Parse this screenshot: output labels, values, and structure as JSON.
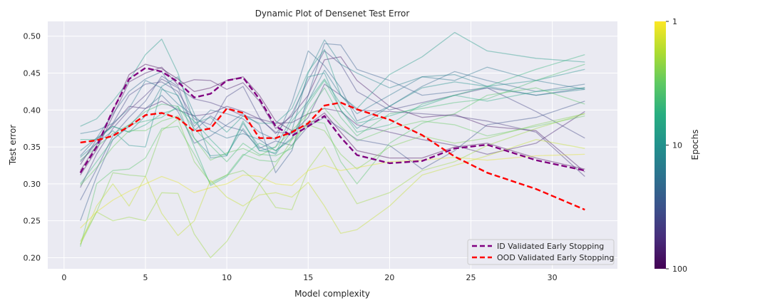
{
  "chart_data": {
    "type": "line",
    "title": "Dynamic Plot of Densenet Test Error",
    "xlabel": "Model complexity",
    "ylabel": "Test error",
    "xlim": [
      -1,
      34
    ],
    "ylim": [
      0.185,
      0.52
    ],
    "xticks": [
      0,
      5,
      10,
      15,
      20,
      25,
      30
    ],
    "yticks": [
      0.2,
      0.25,
      0.3,
      0.35,
      0.4,
      0.45,
      0.5
    ],
    "xtick_labels": [
      "0",
      "5",
      "10",
      "15",
      "20",
      "25",
      "30"
    ],
    "ytick_labels": [
      "0.20",
      "0.25",
      "0.30",
      "0.35",
      "0.40",
      "0.45",
      "0.50"
    ],
    "grid": true,
    "background": "#eaeaf2",
    "legend_position": "lower-right",
    "colorbar": {
      "label": "Epochs",
      "scale": "log",
      "colormap": "viridis",
      "ticks": [
        "1",
        "10",
        "100"
      ],
      "min": 1,
      "max": 100
    },
    "series": [
      {
        "name": "ID Validated Early Stopping",
        "color": "#800080",
        "style": "dashed",
        "x": [
          1,
          2,
          3,
          4,
          5,
          6,
          7,
          8,
          9,
          10,
          11,
          12,
          13,
          14,
          15,
          16,
          17,
          18,
          20,
          22,
          24,
          26,
          29,
          32
        ],
        "values": [
          0.315,
          0.35,
          0.4,
          0.442,
          0.457,
          0.452,
          0.438,
          0.417,
          0.422,
          0.44,
          0.444,
          0.415,
          0.378,
          0.365,
          0.378,
          0.392,
          0.363,
          0.339,
          0.328,
          0.331,
          0.348,
          0.353,
          0.332,
          0.318
        ]
      },
      {
        "name": "OOD Validated Early Stopping",
        "color": "#ff0000",
        "style": "dashed",
        "x": [
          1,
          2,
          3,
          4,
          5,
          6,
          7,
          8,
          9,
          10,
          11,
          12,
          13,
          14,
          15,
          16,
          17,
          18,
          20,
          22,
          24,
          26,
          29,
          32
        ],
        "values": [
          0.356,
          0.359,
          0.365,
          0.378,
          0.393,
          0.396,
          0.389,
          0.371,
          0.375,
          0.402,
          0.396,
          0.362,
          0.362,
          0.37,
          0.382,
          0.406,
          0.41,
          0.401,
          0.387,
          0.366,
          0.337,
          0.315,
          0.293,
          0.265
        ]
      },
      {
        "epochs": 100,
        "x": [
          1,
          2,
          3,
          4,
          5,
          6,
          7,
          8,
          9,
          10,
          11,
          12,
          13,
          14,
          15,
          16,
          17,
          18,
          20,
          22,
          24,
          26,
          29,
          32
        ],
        "values": [
          0.318,
          0.352,
          0.398,
          0.448,
          0.462,
          0.456,
          0.442,
          0.425,
          0.43,
          0.44,
          0.445,
          0.42,
          0.385,
          0.372,
          0.38,
          0.396,
          0.37,
          0.345,
          0.335,
          0.335,
          0.35,
          0.355,
          0.335,
          0.32
        ]
      },
      {
        "epochs": 80,
        "x": [
          1,
          2,
          3,
          4,
          5,
          6,
          7,
          8,
          9,
          10,
          11,
          12,
          13,
          14,
          15,
          16,
          17,
          18,
          20,
          22,
          24,
          26,
          29,
          32
        ],
        "values": [
          0.312,
          0.346,
          0.392,
          0.438,
          0.45,
          0.458,
          0.434,
          0.441,
          0.44,
          0.428,
          0.437,
          0.412,
          0.375,
          0.392,
          0.42,
          0.468,
          0.472,
          0.44,
          0.405,
          0.39,
          0.394,
          0.378,
          0.372,
          0.316
        ]
      },
      {
        "epochs": 65,
        "x": [
          1,
          2,
          3,
          4,
          5,
          6,
          7,
          8,
          9,
          10,
          11,
          12,
          13,
          14,
          15,
          16,
          17,
          18,
          20,
          22,
          24,
          26,
          29,
          32
        ],
        "values": [
          0.326,
          0.36,
          0.38,
          0.405,
          0.402,
          0.412,
          0.4,
          0.392,
          0.395,
          0.405,
          0.398,
          0.388,
          0.382,
          0.383,
          0.395,
          0.402,
          0.398,
          0.38,
          0.37,
          0.36,
          0.352,
          0.34,
          0.355,
          0.398
        ]
      },
      {
        "epochs": 50,
        "x": [
          1,
          2,
          3,
          4,
          5,
          6,
          7,
          8,
          9,
          10,
          11,
          12,
          13,
          14,
          15,
          16,
          17,
          18,
          20,
          22,
          24,
          26,
          29,
          32
        ],
        "values": [
          0.295,
          0.34,
          0.375,
          0.4,
          0.42,
          0.442,
          0.43,
          0.415,
          0.41,
          0.402,
          0.392,
          0.388,
          0.37,
          0.368,
          0.39,
          0.435,
          0.42,
          0.4,
          0.398,
          0.395,
          0.392,
          0.385,
          0.37,
          0.31
        ]
      },
      {
        "epochs": 40,
        "x": [
          1,
          2,
          3,
          4,
          5,
          6,
          7,
          8,
          9,
          10,
          11,
          12,
          13,
          14,
          15,
          16,
          17,
          18,
          20,
          22,
          24,
          26,
          29,
          32
        ],
        "values": [
          0.33,
          0.355,
          0.382,
          0.42,
          0.435,
          0.438,
          0.425,
          0.388,
          0.38,
          0.418,
          0.432,
          0.39,
          0.368,
          0.395,
          0.44,
          0.48,
          0.462,
          0.425,
          0.4,
          0.41,
          0.42,
          0.43,
          0.398,
          0.362
        ]
      },
      {
        "epochs": 32,
        "x": [
          1,
          2,
          3,
          4,
          5,
          6,
          7,
          8,
          9,
          10,
          11,
          12,
          13,
          14,
          15,
          16,
          17,
          18,
          20,
          22,
          24,
          26,
          29,
          32
        ],
        "values": [
          0.278,
          0.32,
          0.365,
          0.39,
          0.412,
          0.446,
          0.432,
          0.372,
          0.392,
          0.378,
          0.372,
          0.348,
          0.358,
          0.352,
          0.378,
          0.39,
          0.375,
          0.36,
          0.352,
          0.32,
          0.345,
          0.38,
          0.39,
          0.412
        ]
      },
      {
        "epochs": 25,
        "x": [
          1,
          2,
          3,
          4,
          5,
          6,
          7,
          8,
          9,
          10,
          11,
          12,
          13,
          14,
          15,
          16,
          17,
          18,
          20,
          22,
          24,
          26,
          29,
          32
        ],
        "values": [
          0.25,
          0.31,
          0.36,
          0.378,
          0.402,
          0.42,
          0.398,
          0.355,
          0.365,
          0.38,
          0.395,
          0.38,
          0.315,
          0.345,
          0.42,
          0.49,
          0.488,
          0.455,
          0.44,
          0.42,
          0.425,
          0.43,
          0.42,
          0.43
        ]
      },
      {
        "epochs": 20,
        "x": [
          1,
          2,
          3,
          4,
          5,
          6,
          7,
          8,
          9,
          10,
          11,
          12,
          13,
          14,
          15,
          16,
          17,
          18,
          20,
          22,
          24,
          26,
          29,
          32
        ],
        "values": [
          0.338,
          0.362,
          0.395,
          0.425,
          0.442,
          0.452,
          0.418,
          0.378,
          0.4,
          0.395,
          0.388,
          0.37,
          0.36,
          0.41,
          0.48,
          0.46,
          0.43,
          0.385,
          0.405,
          0.432,
          0.452,
          0.44,
          0.425,
          0.435
        ]
      },
      {
        "epochs": 16,
        "x": [
          1,
          2,
          3,
          4,
          5,
          6,
          7,
          8,
          9,
          10,
          11,
          12,
          13,
          14,
          15,
          16,
          17,
          18,
          20,
          22,
          24,
          26,
          29,
          32
        ],
        "values": [
          0.368,
          0.372,
          0.382,
          0.402,
          0.44,
          0.43,
          0.408,
          0.392,
          0.372,
          0.362,
          0.368,
          0.36,
          0.345,
          0.362,
          0.412,
          0.454,
          0.42,
          0.395,
          0.42,
          0.445,
          0.44,
          0.458,
          0.44,
          0.428
        ]
      },
      {
        "epochs": 13,
        "x": [
          1,
          2,
          3,
          4,
          5,
          6,
          7,
          8,
          9,
          10,
          11,
          12,
          13,
          14,
          15,
          16,
          17,
          18,
          20,
          22,
          24,
          26,
          29,
          32
        ],
        "values": [
          0.345,
          0.362,
          0.378,
          0.37,
          0.392,
          0.432,
          0.445,
          0.395,
          0.335,
          0.338,
          0.382,
          0.35,
          0.34,
          0.372,
          0.45,
          0.495,
          0.462,
          0.45,
          0.43,
          0.445,
          0.448,
          0.432,
          0.42,
          0.428
        ]
      },
      {
        "epochs": 10,
        "x": [
          1,
          2,
          3,
          4,
          5,
          6,
          7,
          8,
          9,
          10,
          11,
          12,
          13,
          14,
          15,
          16,
          17,
          18,
          20,
          22,
          24,
          26,
          29,
          32
        ],
        "values": [
          0.336,
          0.355,
          0.372,
          0.352,
          0.35,
          0.428,
          0.42,
          0.362,
          0.338,
          0.34,
          0.375,
          0.345,
          0.35,
          0.39,
          0.445,
          0.45,
          0.4,
          0.375,
          0.405,
          0.43,
          0.438,
          0.432,
          0.44,
          0.455
        ]
      },
      {
        "epochs": 8,
        "x": [
          1,
          2,
          3,
          4,
          5,
          6,
          7,
          8,
          9,
          10,
          11,
          12,
          13,
          14,
          15,
          16,
          17,
          18,
          20,
          22,
          24,
          26,
          29,
          32
        ],
        "values": [
          0.378,
          0.388,
          0.412,
          0.44,
          0.475,
          0.496,
          0.45,
          0.382,
          0.39,
          0.37,
          0.392,
          0.382,
          0.382,
          0.402,
          0.452,
          0.482,
          0.42,
          0.402,
          0.448,
          0.472,
          0.505,
          0.48,
          0.47,
          0.465
        ]
      },
      {
        "epochs": 6,
        "x": [
          1,
          2,
          3,
          4,
          5,
          6,
          7,
          8,
          9,
          10,
          11,
          12,
          13,
          14,
          15,
          16,
          17,
          18,
          20,
          22,
          24,
          26,
          29,
          32
        ],
        "values": [
          0.36,
          0.36,
          0.378,
          0.37,
          0.38,
          0.395,
          0.402,
          0.385,
          0.36,
          0.338,
          0.385,
          0.345,
          0.342,
          0.385,
          0.412,
          0.442,
          0.408,
          0.382,
          0.392,
          0.405,
          0.42,
          0.412,
          0.425,
          0.43
        ]
      },
      {
        "epochs": 5,
        "x": [
          1,
          2,
          3,
          4,
          5,
          6,
          7,
          8,
          9,
          10,
          11,
          12,
          13,
          14,
          15,
          16,
          17,
          18,
          20,
          22,
          24,
          26,
          29,
          32
        ],
        "values": [
          0.3,
          0.33,
          0.36,
          0.38,
          0.385,
          0.39,
          0.405,
          0.35,
          0.298,
          0.31,
          0.338,
          0.355,
          0.345,
          0.36,
          0.408,
          0.44,
          0.4,
          0.37,
          0.38,
          0.408,
          0.42,
          0.432,
          0.455,
          0.475
        ]
      },
      {
        "epochs": 4,
        "x": [
          1,
          2,
          3,
          4,
          5,
          6,
          7,
          8,
          9,
          10,
          11,
          12,
          13,
          14,
          15,
          16,
          17,
          18,
          20,
          22,
          24,
          26,
          29,
          32
        ],
        "values": [
          0.332,
          0.35,
          0.368,
          0.38,
          0.398,
          0.408,
          0.405,
          0.375,
          0.352,
          0.33,
          0.355,
          0.34,
          0.338,
          0.348,
          0.398,
          0.43,
          0.39,
          0.365,
          0.395,
          0.402,
          0.41,
          0.415,
          0.44,
          0.462
        ]
      },
      {
        "epochs": 3.4,
        "x": [
          1,
          2,
          3,
          4,
          5,
          6,
          7,
          8,
          9,
          10,
          11,
          12,
          13,
          14,
          15,
          16,
          17,
          18,
          20,
          22,
          24,
          26,
          29,
          32
        ],
        "values": [
          0.215,
          0.3,
          0.318,
          0.32,
          0.335,
          0.375,
          0.378,
          0.34,
          0.3,
          0.312,
          0.34,
          0.332,
          0.33,
          0.352,
          0.385,
          0.382,
          0.33,
          0.3,
          0.355,
          0.382,
          0.395,
          0.42,
          0.43,
          0.408
        ]
      },
      {
        "epochs": 3,
        "x": [
          1,
          2,
          3,
          4,
          5,
          6,
          7,
          8,
          9,
          10,
          11,
          12,
          13,
          14,
          15,
          16,
          17,
          18,
          20,
          22,
          24,
          26,
          29,
          32
        ],
        "values": [
          0.298,
          0.322,
          0.35,
          0.372,
          0.372,
          0.385,
          0.392,
          0.362,
          0.332,
          0.342,
          0.348,
          0.338,
          0.35,
          0.372,
          0.395,
          0.402,
          0.378,
          0.358,
          0.375,
          0.385,
          0.38,
          0.365,
          0.378,
          0.392
        ]
      },
      {
        "epochs": 2.5,
        "x": [
          1,
          2,
          3,
          4,
          5,
          6,
          7,
          8,
          9,
          10,
          11,
          12,
          13,
          14,
          15,
          16,
          17,
          18,
          20,
          22,
          24,
          26,
          29,
          32
        ],
        "values": [
          0.218,
          0.262,
          0.315,
          0.312,
          0.31,
          0.372,
          0.388,
          0.33,
          0.302,
          0.312,
          0.318,
          0.3,
          0.325,
          0.36,
          0.38,
          0.372,
          0.34,
          0.32,
          0.35,
          0.365,
          0.355,
          0.362,
          0.38,
          0.395
        ]
      },
      {
        "epochs": 2,
        "x": [
          1,
          2,
          3,
          4,
          5,
          6,
          7,
          8,
          9,
          10,
          11,
          12,
          13,
          14,
          15,
          16,
          17,
          18,
          20,
          22,
          24,
          26,
          29,
          32
        ],
        "values": [
          0.222,
          0.262,
          0.25,
          0.255,
          0.25,
          0.288,
          0.287,
          0.232,
          0.2,
          0.222,
          0.258,
          0.3,
          0.268,
          0.265,
          0.32,
          0.35,
          0.31,
          0.273,
          0.288,
          0.318,
          0.33,
          0.352,
          0.375,
          0.395
        ]
      },
      {
        "epochs": 1.5,
        "x": [
          1,
          2,
          3,
          4,
          5,
          6,
          7,
          8,
          9,
          10,
          11,
          12,
          13,
          14,
          15,
          16,
          17,
          18,
          20,
          22,
          24,
          26,
          29,
          32
        ],
        "values": [
          0.218,
          0.27,
          0.3,
          0.27,
          0.31,
          0.26,
          0.23,
          0.25,
          0.305,
          0.282,
          0.27,
          0.285,
          0.288,
          0.282,
          0.302,
          0.27,
          0.233,
          0.238,
          0.27,
          0.312,
          0.325,
          0.338,
          0.36,
          0.348
        ]
      },
      {
        "epochs": 1.2,
        "x": [
          1,
          2,
          3,
          4,
          5,
          6,
          7,
          8,
          9,
          10,
          11,
          12,
          13,
          14,
          15,
          16,
          17,
          18,
          20,
          22,
          24,
          26,
          29,
          32
        ],
        "values": [
          0.24,
          0.262,
          0.278,
          0.29,
          0.3,
          0.31,
          0.302,
          0.288,
          0.295,
          0.3,
          0.312,
          0.31,
          0.3,
          0.298,
          0.318,
          0.325,
          0.318,
          0.322,
          0.33,
          0.332,
          0.336,
          0.332,
          0.338,
          0.34
        ]
      }
    ]
  }
}
